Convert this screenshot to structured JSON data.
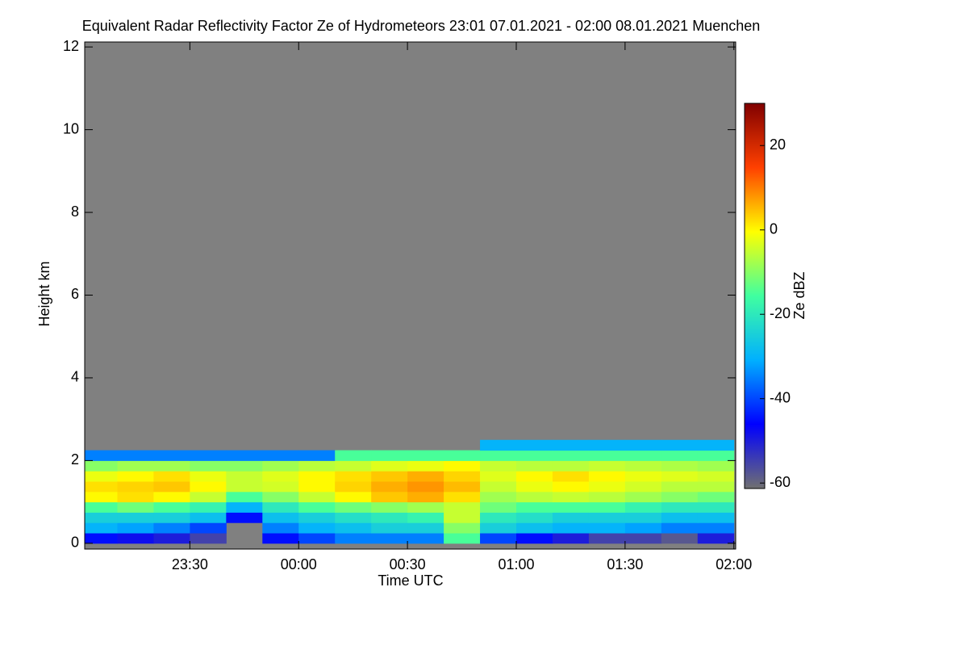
{
  "chart_data": {
    "type": "heatmap",
    "title": "Equivalent Radar Reflectivity Factor Ze of Hydrometeors   23:01 07.01.2021 - 02:00 08.01.2021 Muenchen",
    "xlabel": "Time UTC",
    "ylabel": "Height km",
    "colorbar_label": "Ze dBZ",
    "xlim": [
      1,
      180.5
    ],
    "ylim": [
      -0.14,
      12.12
    ],
    "zlim": [
      -61.3,
      30
    ],
    "xticks": [
      {
        "value": 30,
        "label": "23:30"
      },
      {
        "value": 60,
        "label": "00:00"
      },
      {
        "value": 90,
        "label": "00:30"
      },
      {
        "value": 120,
        "label": "01:00"
      },
      {
        "value": 150,
        "label": "01:30"
      },
      {
        "value": 180,
        "label": "02:00"
      }
    ],
    "yticks": [
      0,
      2,
      4,
      6,
      8,
      10,
      12
    ],
    "zticks": [
      -60,
      -40,
      -20,
      0,
      20
    ],
    "xbins": [
      1,
      10,
      20,
      30,
      40,
      50,
      60,
      70,
      80,
      90,
      100,
      110,
      120,
      130,
      140,
      150,
      160,
      170,
      180
    ],
    "ybins": [
      0,
      0.25,
      0.5,
      0.75,
      1,
      1.25,
      1.5,
      1.75,
      2,
      2.25,
      2.5
    ],
    "values": [
      [
        -45,
        -48,
        -50,
        -55,
        null,
        -45,
        -40,
        -35,
        -35,
        -35,
        -15,
        -40,
        -45,
        -50,
        -55,
        -55,
        -58,
        -50
      ],
      [
        -30,
        -32,
        -35,
        -40,
        null,
        -35,
        -30,
        -28,
        -25,
        -25,
        -10,
        -25,
        -28,
        -30,
        -30,
        -32,
        -35,
        -35
      ],
      [
        -25,
        -25,
        -25,
        -28,
        -45,
        -28,
        -25,
        -22,
        -20,
        -18,
        -5,
        -20,
        -22,
        -25,
        -25,
        -25,
        -28,
        -28
      ],
      [
        -15,
        -12,
        -15,
        -18,
        -30,
        -20,
        -15,
        -12,
        -10,
        -8,
        -5,
        -12,
        -15,
        -15,
        -15,
        -18,
        -20,
        -20
      ],
      [
        0,
        2,
        0,
        -5,
        -15,
        -10,
        -5,
        0,
        4,
        6,
        2,
        -8,
        -6,
        -5,
        -6,
        -8,
        -10,
        -12
      ],
      [
        2,
        3,
        4,
        0,
        -5,
        -4,
        0,
        3,
        6,
        8,
        5,
        -5,
        -2,
        0,
        -2,
        -4,
        -6,
        -6
      ],
      [
        -2,
        0,
        2,
        -2,
        -5,
        -3,
        0,
        2,
        4,
        6,
        3,
        -3,
        0,
        2,
        0,
        -2,
        -3,
        -4
      ],
      [
        -10,
        -8,
        -8,
        -10,
        -10,
        -8,
        -6,
        -5,
        -3,
        -2,
        0,
        -5,
        -6,
        -6,
        -5,
        -6,
        -7,
        -8
      ],
      [
        -35,
        -35,
        -35,
        -35,
        -35,
        -35,
        -35,
        -15,
        -15,
        -15,
        -15,
        -15,
        -15,
        -15,
        -15,
        -15,
        -15,
        -15
      ],
      [
        null,
        null,
        null,
        null,
        null,
        null,
        null,
        null,
        null,
        null,
        null,
        -30,
        -30,
        -30,
        -30,
        -30,
        -30,
        -30
      ]
    ],
    "colorscale": [
      "#707070",
      "#0000ff",
      "#00b0ff",
      "#40ffa0",
      "#ffff00",
      "#ff4000",
      "#800000"
    ],
    "nan_color": "#808080",
    "grid": false
  }
}
